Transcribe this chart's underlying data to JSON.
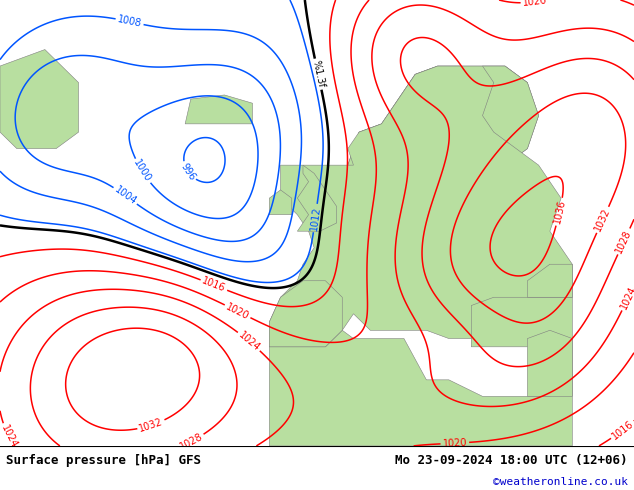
{
  "title_left": "Surface pressure [hPa] GFS",
  "title_right": "Mo 23-09-2024 18:00 UTC (12+06)",
  "credit": "©weatheronline.co.uk",
  "sea_color": "#d8d8d8",
  "land_color": "#b8dfa0",
  "highland_color": "#a8a8a8",
  "below_color": "#0055ff",
  "at_color": "#000000",
  "above_color": "#ff0000",
  "footer_bg": "#ffffff",
  "footer_text_color": "#000000",
  "footer_credit_color": "#0000cc",
  "font_size_title": 9,
  "font_size_credit": 8,
  "font_size_label": 7
}
